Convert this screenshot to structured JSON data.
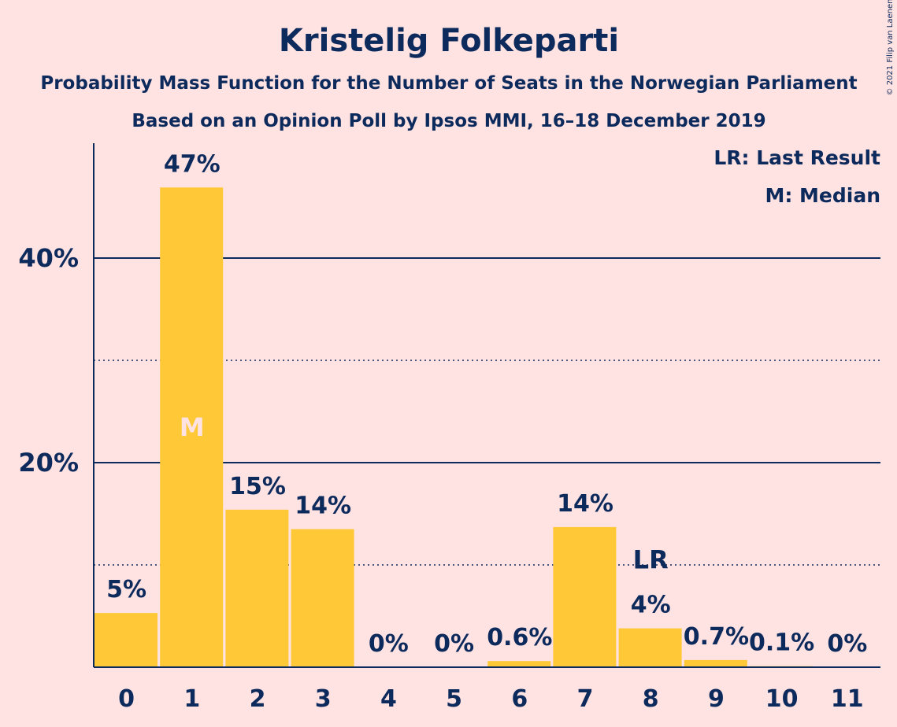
{
  "chart_data": {
    "type": "bar",
    "title": "Kristelig Folkeparti",
    "subtitle_1": "Probability Mass Function for the Number of Seats in the Norwegian Parliament",
    "subtitle_2": "Based on an Opinion Poll by Ipsos MMI, 16–18 December 2019",
    "copyright": "© 2021 Filip van Laenen",
    "legend": [
      "LR: Last Result",
      "M: Median"
    ],
    "categories": [
      "0",
      "1",
      "2",
      "3",
      "4",
      "5",
      "6",
      "7",
      "8",
      "9",
      "10",
      "11"
    ],
    "values": [
      5.3,
      46.9,
      15.4,
      13.5,
      0,
      0,
      0.6,
      13.7,
      3.8,
      0.7,
      0.1,
      0
    ],
    "data_labels": [
      "5%",
      "47%",
      "15%",
      "14%",
      "0%",
      "0%",
      "0.6%",
      "14%",
      "4%",
      "0.7%",
      "0.1%",
      "0%"
    ],
    "yticks": [
      {
        "value": 20,
        "label": "20%"
      },
      {
        "value": 40,
        "label": "40%"
      }
    ],
    "minor_gridlines": [
      10,
      30
    ],
    "ylim": [
      0,
      51
    ],
    "median": {
      "category": "1",
      "label": "M"
    },
    "last_result": {
      "category": "8",
      "label": "LR"
    },
    "colors": {
      "background": "#FFE2E2",
      "bar": "#FFC837",
      "text": "#0D2A5C",
      "median_label": "#FFE2E2"
    }
  }
}
